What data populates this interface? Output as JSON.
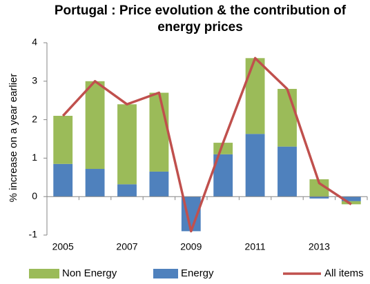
{
  "chart_data": {
    "type": "stacked_bar_line",
    "title": "Portugal : Price evolution & the contribution of energy prices",
    "y_label": "% increase on a year earlier",
    "categories": [
      "2005",
      null,
      "2007",
      null,
      "2009",
      null,
      "2011",
      null,
      "2013",
      null
    ],
    "series": [
      {
        "name": "Non Energy",
        "type": "bar",
        "color": "#9bbb59",
        "values": [
          1.25,
          2.28,
          2.08,
          2.05,
          0.0,
          0.3,
          1.97,
          1.5,
          0.45,
          -0.08
        ]
      },
      {
        "name": "Energy",
        "type": "bar",
        "color": "#4f81bd",
        "values": [
          0.85,
          0.72,
          0.32,
          0.65,
          -0.9,
          1.1,
          1.63,
          1.3,
          -0.05,
          -0.12
        ]
      },
      {
        "name": "All items",
        "type": "line",
        "color": "#c0504d",
        "values": [
          2.1,
          3.0,
          2.4,
          2.7,
          -0.9,
          1.4,
          3.6,
          2.8,
          0.35,
          -0.2
        ]
      }
    ],
    "ylim": [
      -1,
      4
    ],
    "yticks": [
      -1,
      0,
      1,
      2,
      3,
      4
    ],
    "grid": false,
    "legend": "bottom"
  }
}
